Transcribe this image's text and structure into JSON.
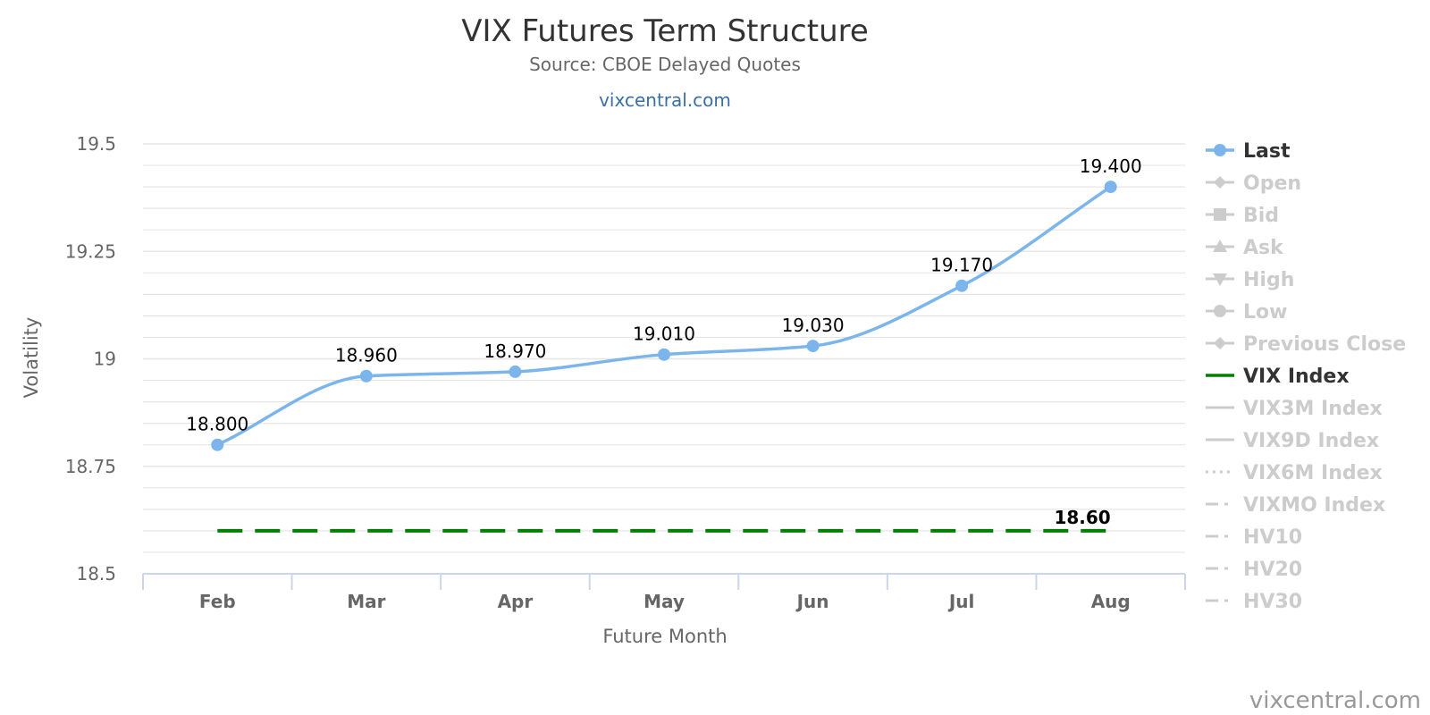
{
  "chart_data": {
    "type": "line",
    "title": "VIX Futures Term Structure",
    "subtitle": "Source: CBOE Delayed Quotes",
    "subtitle_link": "vixcentral.com",
    "xlabel": "Future Month",
    "ylabel": "Volatility",
    "categories": [
      "Feb",
      "Mar",
      "Apr",
      "May",
      "Jun",
      "Jul",
      "Aug"
    ],
    "ylim": [
      18.5,
      19.5
    ],
    "y_ticks": [
      "19.5",
      "19.25",
      "19",
      "18.75",
      "18.5"
    ],
    "y_tick_values": [
      19.5,
      19.25,
      19.0,
      18.75,
      18.5
    ],
    "grid": true,
    "legend_position": "right",
    "series": [
      {
        "name": "Last",
        "values": [
          18.8,
          18.96,
          18.97,
          19.01,
          19.03,
          19.17,
          19.4
        ],
        "labels": [
          "18.800",
          "18.960",
          "18.970",
          "19.010",
          "19.030",
          "19.170",
          "19.400"
        ],
        "color": "#7cb5ec",
        "style": "smooth-line-with-markers"
      },
      {
        "name": "VIX Index",
        "values": [
          18.6,
          18.6,
          18.6,
          18.6,
          18.6,
          18.6,
          18.6
        ],
        "end_label": "18.60",
        "color": "#008000",
        "style": "dashed"
      }
    ],
    "legend": [
      {
        "name": "Last",
        "active": true,
        "symbol": "circle",
        "line": "solid",
        "color": "#7cb5ec"
      },
      {
        "name": "Open",
        "active": false,
        "symbol": "diamond",
        "line": "solid"
      },
      {
        "name": "Bid",
        "active": false,
        "symbol": "square",
        "line": "solid"
      },
      {
        "name": "Ask",
        "active": false,
        "symbol": "triangle",
        "line": "solid"
      },
      {
        "name": "High",
        "active": false,
        "symbol": "triangle-down",
        "line": "solid"
      },
      {
        "name": "Low",
        "active": false,
        "symbol": "circle",
        "line": "solid"
      },
      {
        "name": "Previous Close",
        "active": false,
        "symbol": "diamond",
        "line": "solid"
      },
      {
        "name": "VIX Index",
        "active": true,
        "symbol": "none",
        "line": "solid",
        "color": "#008000"
      },
      {
        "name": "VIX3M Index",
        "active": false,
        "symbol": "none",
        "line": "solid"
      },
      {
        "name": "VIX9D Index",
        "active": false,
        "symbol": "none",
        "line": "solid"
      },
      {
        "name": "VIX6M Index",
        "active": false,
        "symbol": "none",
        "line": "dotted"
      },
      {
        "name": "VIXMO Index",
        "active": false,
        "symbol": "none",
        "line": "dashdot"
      },
      {
        "name": "HV10",
        "active": false,
        "symbol": "none",
        "line": "dashdot"
      },
      {
        "name": "HV20",
        "active": false,
        "symbol": "none",
        "line": "dashdot"
      },
      {
        "name": "HV30",
        "active": false,
        "symbol": "none",
        "line": "dashdot"
      }
    ]
  },
  "credit": "vixcentral.com",
  "colors": {
    "grid": "#e6e6e6",
    "axis": "#ccd6eb",
    "inactive": "#cccccc",
    "active_text": "#333333"
  }
}
